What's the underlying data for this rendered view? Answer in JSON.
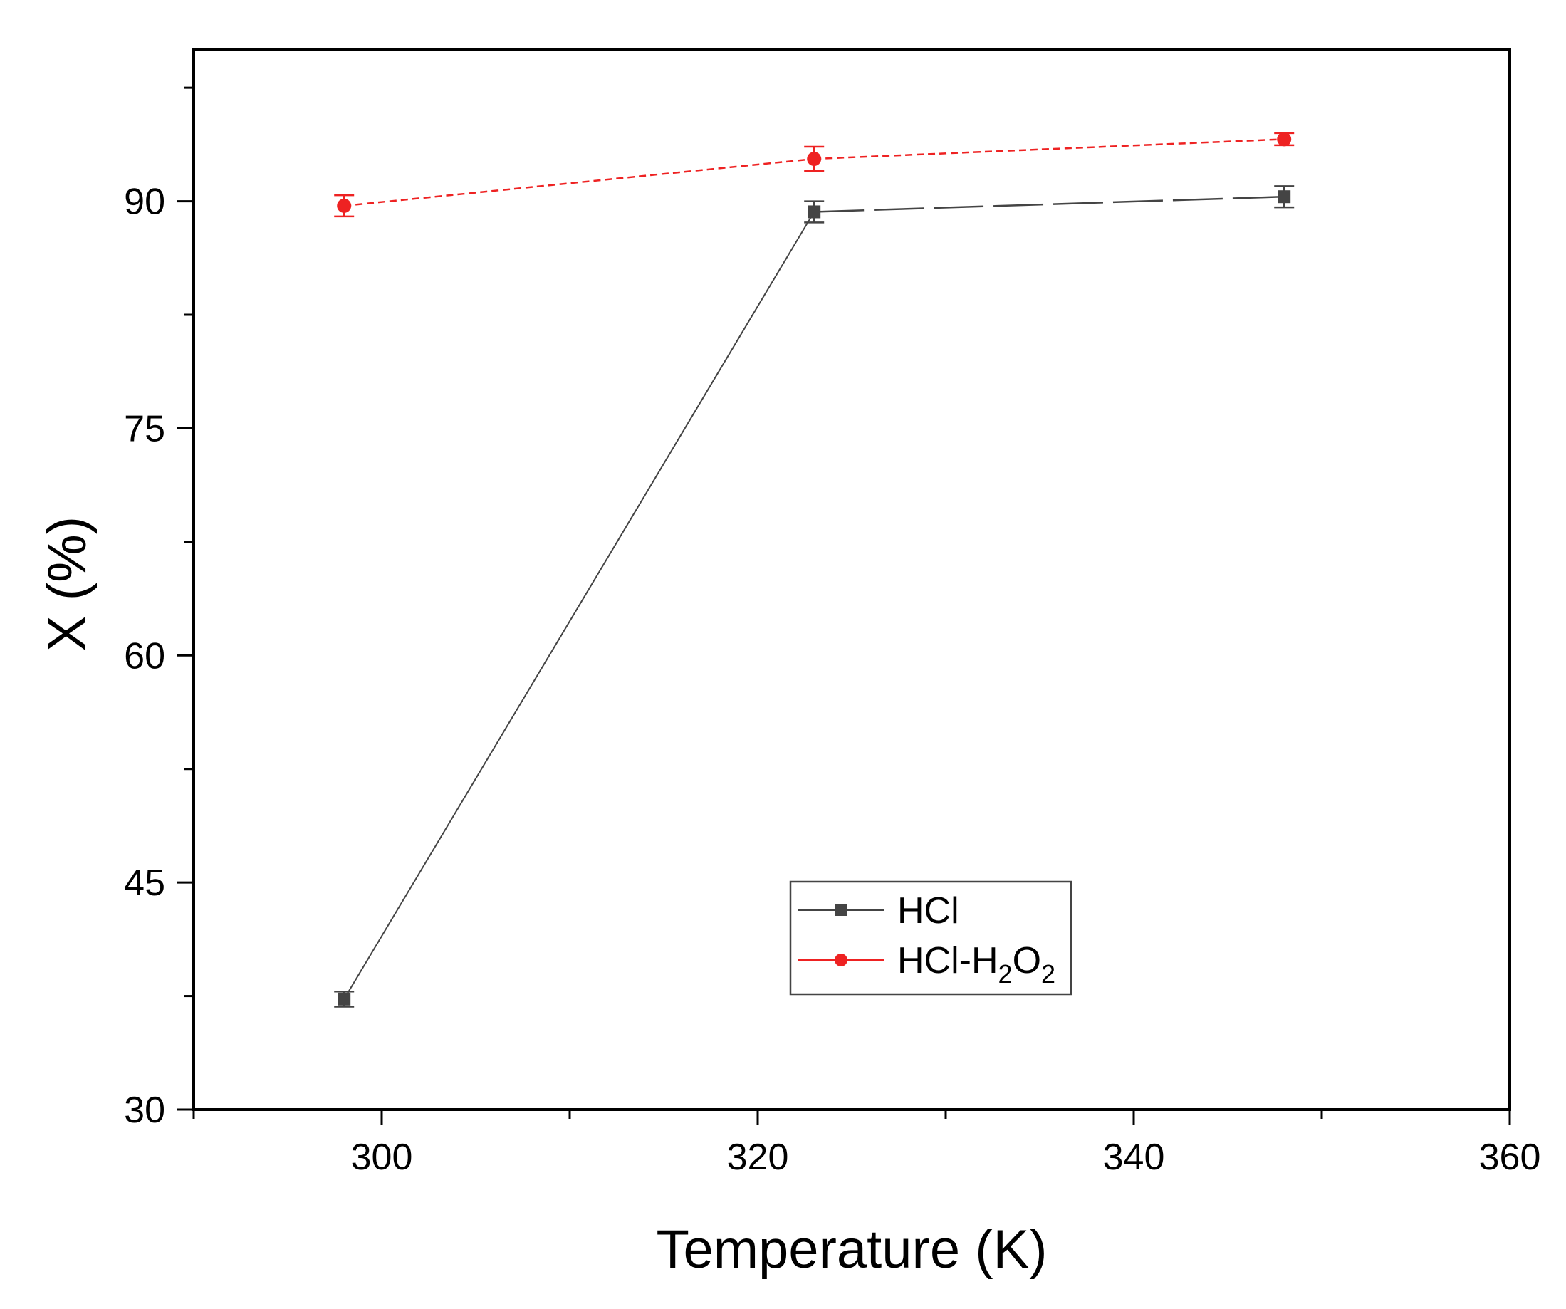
{
  "chart_data": {
    "type": "line",
    "xlabel": "Temperature (K)",
    "ylabel": "X (%)",
    "xlim": [
      290,
      360
    ],
    "ylim": [
      30,
      100
    ],
    "xticks": [
      300,
      320,
      340,
      360
    ],
    "yticks": [
      30,
      45,
      60,
      75,
      90
    ],
    "grid": false,
    "legend_position": "lower-center",
    "series": [
      {
        "name": "HCl",
        "color": "#444444",
        "marker": "square",
        "line_style": "solid-then-long-dash",
        "x": [
          298,
          323,
          348
        ],
        "y": [
          37.3,
          89.3,
          90.3
        ],
        "error": [
          0.5,
          0.7,
          0.7
        ]
      },
      {
        "name": "HCl-H2O2",
        "legend_label": {
          "main": "HCl-H",
          "sub1": "2",
          "mid": "O",
          "sub2": "2"
        },
        "color": "#ee2222",
        "marker": "circle",
        "line_style": "dashed",
        "x": [
          298,
          323,
          348
        ],
        "y": [
          89.7,
          92.8,
          94.1
        ],
        "error": [
          0.7,
          0.8,
          0.4
        ]
      }
    ]
  }
}
